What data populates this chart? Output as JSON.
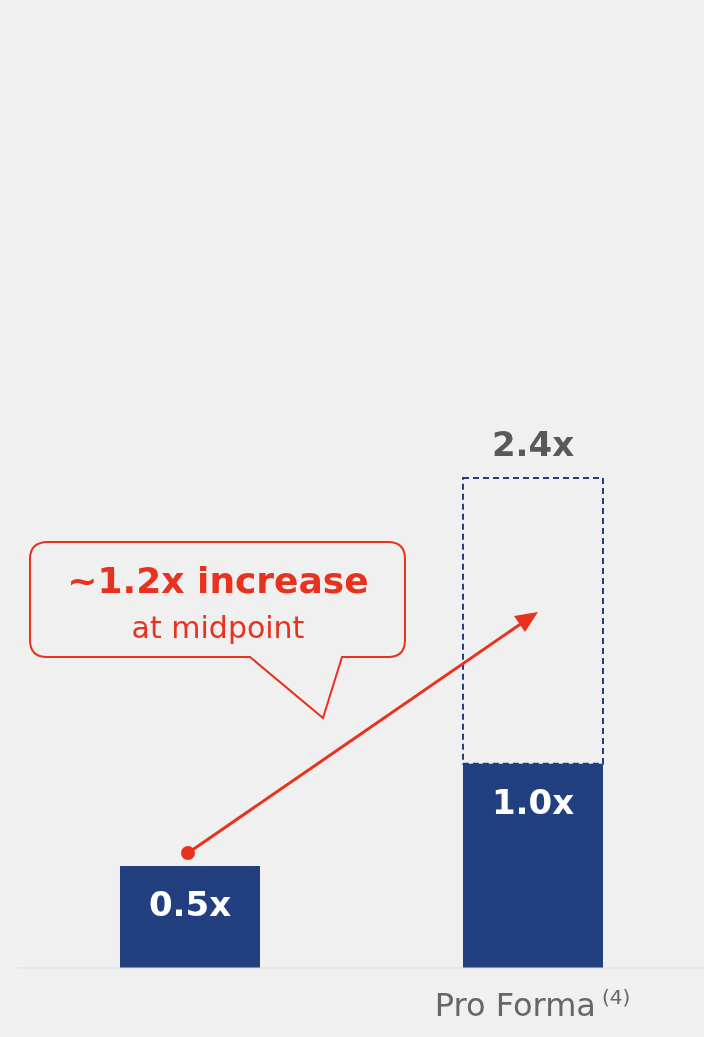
{
  "chart_data": {
    "type": "bar",
    "categories": [
      null,
      "Pro Forma$^{(4)}$"
    ],
    "stacked": true,
    "series": [
      {
        "color": "#22407f",
        "values": [
          0.5,
          1.0
        ],
        "value_labels": [
          "0.5x",
          "1.0x"
        ]
      },
      {
        "color": "#22407f",
        "values": [
          null,
          1.4
        ],
        "line_style": "dashed"
      }
    ],
    "totals": [
      null,
      "2.4x"
    ],
    "annotations": [
      "~1.2x increase",
      "at midpoint"
    ],
    "legend": false
  }
}
